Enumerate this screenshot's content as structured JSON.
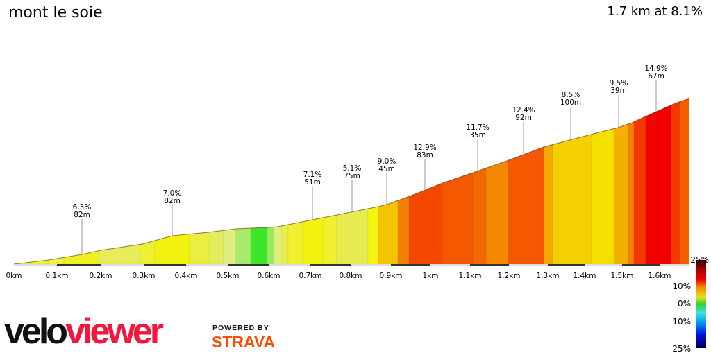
{
  "header": {
    "title": "mont le soie",
    "summary": "1.7 km at 8.1%"
  },
  "chart_data": {
    "type": "area",
    "title": "mont le soie",
    "subtitle": "1.7 km at 8.1%",
    "x_ticks": [
      "0km",
      "0.1km",
      "0.2km",
      "0.3km",
      "0.4km",
      "0.5km",
      "0.6km",
      "0.7km",
      "0.8km",
      "0.9km",
      "1km",
      "1.1km",
      "1.2km",
      "1.3km",
      "1.4km",
      "1.5km",
      "1.6km"
    ],
    "annotations": [
      {
        "gradient": "6.3%",
        "length": "82m"
      },
      {
        "gradient": "7.0%",
        "length": "82m"
      },
      {
        "gradient": "7.1%",
        "length": "51m"
      },
      {
        "gradient": "5.1%",
        "length": "75m"
      },
      {
        "gradient": "9.0%",
        "length": "45m"
      },
      {
        "gradient": "12.9%",
        "length": "83m"
      },
      {
        "gradient": "11.7%",
        "length": "35m"
      },
      {
        "gradient": "12.4%",
        "length": "92m"
      },
      {
        "gradient": "8.5%",
        "length": "100m"
      },
      {
        "gradient": "9.5%",
        "length": "39m"
      },
      {
        "gradient": "14.9%",
        "length": "67m"
      }
    ],
    "segment_colors": [
      "#eef22a",
      "#f0f23c",
      "#f0f020",
      "#e6ec5a",
      "#eef030",
      "#f2f210",
      "#eaee40",
      "#e4ec60",
      "#e0ee80",
      "#a8ea6a",
      "#3de62a",
      "#98e860",
      "#e0ee80",
      "#e8ee50",
      "#f0f030",
      "#f2f210",
      "#eef030",
      "#e6ec50",
      "#f4f410",
      "#f4c400",
      "#f48000",
      "#f44800",
      "#f45800",
      "#f46800",
      "#f48800",
      "#f45800",
      "#f4a800",
      "#f4d000",
      "#f4e000",
      "#f4b000",
      "#f48000",
      "#f43800",
      "#f00000",
      "#f43800",
      "#f46000"
    ],
    "legend": {
      "labels": [
        "25%",
        "10%",
        "0%",
        "-10%",
        "-25%"
      ],
      "range": [
        -25,
        25
      ]
    }
  },
  "branding": {
    "logo_part1": "velo",
    "logo_part2": "viewer",
    "powered_by": "POWERED BY",
    "strava": "STRAVA"
  }
}
